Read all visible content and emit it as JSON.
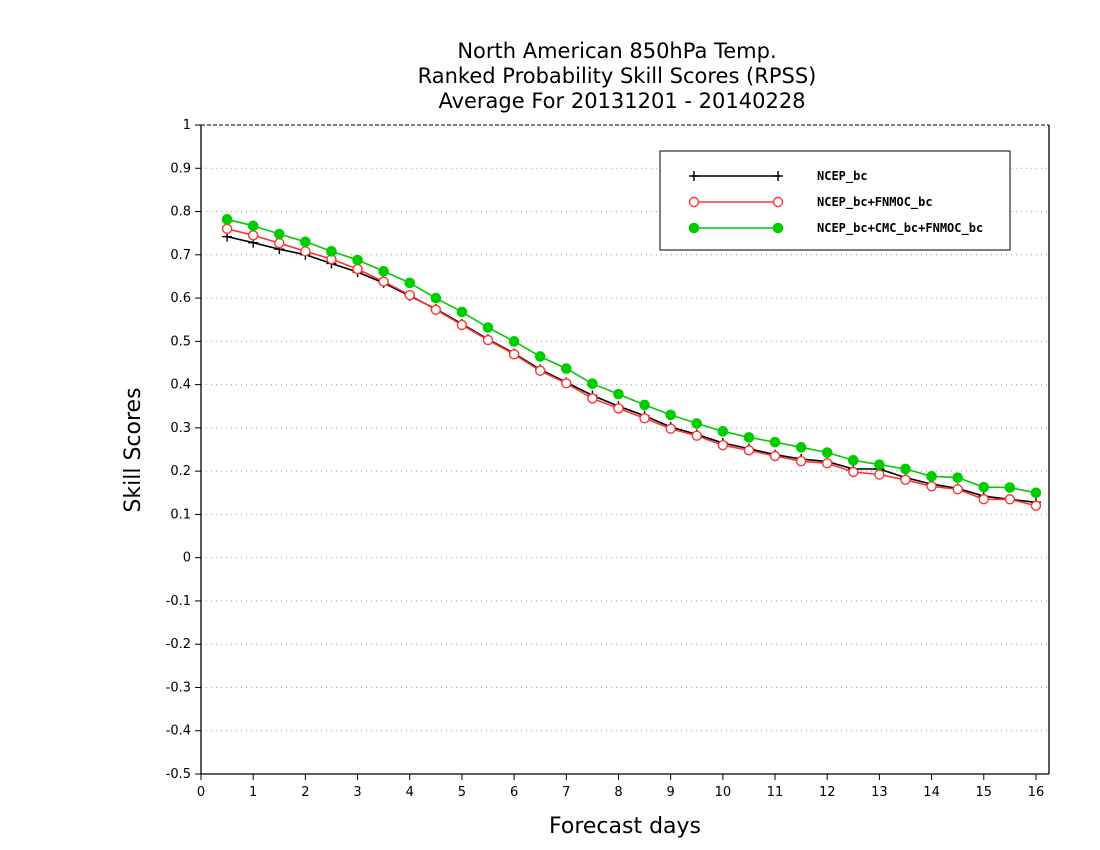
{
  "chart_data": {
    "type": "line",
    "title": [
      "North American 850hPa Temp.",
      "Ranked Probability Skill Scores (RPSS)",
      "Average For 20131201 - 20140228"
    ],
    "xlabel": "Forecast days",
    "ylabel": "Skill Scores",
    "xlim": [
      0,
      16.25
    ],
    "ylim": [
      -0.5,
      1
    ],
    "xticks": [
      0,
      1,
      2,
      3,
      4,
      5,
      6,
      7,
      8,
      9,
      10,
      11,
      12,
      13,
      14,
      15,
      16
    ],
    "yticks": [
      -0.5,
      -0.4,
      -0.3,
      -0.2,
      -0.1,
      0,
      0.1,
      0.2,
      0.3,
      0.4,
      0.5,
      0.6,
      0.7,
      0.8,
      0.9,
      1
    ],
    "ytick_labels": [
      "-0.5",
      "-0.4",
      "-0.3",
      "-0.2",
      "-0.1",
      "0",
      "0.1",
      "0.2",
      "0.3",
      "0.4",
      "0.5",
      "0.6",
      "0.7",
      "0.8",
      "0.9",
      "1"
    ],
    "grid": "horizontal dotted",
    "legend_position": "top-right",
    "x": [
      0.5,
      1,
      1.5,
      2,
      2.5,
      3,
      3.5,
      4,
      4.5,
      5,
      5.5,
      6,
      6.5,
      7,
      7.5,
      8,
      8.5,
      9,
      9.5,
      10,
      10.5,
      11,
      11.5,
      12,
      12.5,
      13,
      13.5,
      14,
      14.5,
      15,
      15.5,
      16
    ],
    "series": [
      {
        "name": "NCEP_bc",
        "color": "#000000",
        "marker": "plus",
        "values": [
          0.742,
          0.728,
          0.713,
          0.7,
          0.68,
          0.66,
          0.635,
          0.605,
          0.575,
          0.54,
          0.505,
          0.472,
          0.435,
          0.405,
          0.375,
          0.35,
          0.328,
          0.302,
          0.285,
          0.265,
          0.252,
          0.238,
          0.228,
          0.222,
          0.205,
          0.205,
          0.185,
          0.17,
          0.16,
          0.142,
          0.135,
          0.128
        ]
      },
      {
        "name": "NCEP_bc+FNMOC_bc",
        "color": "#ff3333",
        "marker": "open-circle",
        "values": [
          0.76,
          0.745,
          0.727,
          0.708,
          0.69,
          0.667,
          0.638,
          0.607,
          0.573,
          0.538,
          0.503,
          0.47,
          0.432,
          0.403,
          0.368,
          0.345,
          0.322,
          0.298,
          0.282,
          0.26,
          0.248,
          0.235,
          0.223,
          0.218,
          0.198,
          0.192,
          0.18,
          0.165,
          0.158,
          0.135,
          0.135,
          0.12
        ]
      },
      {
        "name": "NCEP_bc+CMC_bc+FNMOC_bc",
        "color": "#00cc00",
        "marker": "filled-circle",
        "values": [
          0.782,
          0.767,
          0.748,
          0.73,
          0.708,
          0.688,
          0.662,
          0.635,
          0.6,
          0.568,
          0.532,
          0.5,
          0.465,
          0.437,
          0.402,
          0.378,
          0.353,
          0.33,
          0.31,
          0.292,
          0.278,
          0.267,
          0.255,
          0.243,
          0.225,
          0.215,
          0.205,
          0.188,
          0.185,
          0.163,
          0.162,
          0.15
        ]
      }
    ]
  }
}
